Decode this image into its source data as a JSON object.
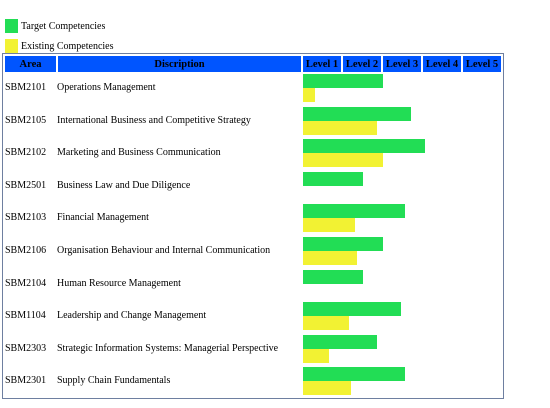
{
  "legend": [
    {
      "label": "Target Competencies",
      "color": "#22dd55"
    },
    {
      "label": "Existing Competencies",
      "color": "#f2f233"
    }
  ],
  "chart_data": {
    "type": "bar",
    "orientation": "horizontal",
    "columns": {
      "area": "Area",
      "description": "Discription",
      "levels": [
        "Level 1",
        "Level 2",
        "Level 3",
        "Level 4",
        "Level 5"
      ]
    },
    "xlim": [
      0,
      5
    ],
    "rows": [
      {
        "code": "SBM2101",
        "description": "Operations Management",
        "target": 2.0,
        "existing": 0.3
      },
      {
        "code": "SBM2105",
        "description": "International Business and Competitive Strategy",
        "target": 2.7,
        "existing": 1.85
      },
      {
        "code": "SBM2102",
        "description": "Marketing and Business Communication",
        "target": 3.05,
        "existing": 2.0
      },
      {
        "code": "SBM2501",
        "description": "Business Law and Due Diligence",
        "target": 1.5,
        "existing": 0
      },
      {
        "code": "SBM2103",
        "description": "Financial Management",
        "target": 2.55,
        "existing": 1.3
      },
      {
        "code": "SBM2106",
        "description": "Organisation Behaviour and Internal Communication",
        "target": 2.0,
        "existing": 1.35
      },
      {
        "code": "SBM2104",
        "description": "Human Resource Management",
        "target": 1.5,
        "existing": 0
      },
      {
        "code": "SBM1104",
        "description": "Leadership and Change Management",
        "target": 2.45,
        "existing": 1.15
      },
      {
        "code": "SBM2303",
        "description": "Strategic Information Systems: Managerial Perspective",
        "target": 1.85,
        "existing": 0.65
      },
      {
        "code": "SBM2301",
        "description": "Supply Chain Fundamentals",
        "target": 2.55,
        "existing": 1.2
      }
    ]
  }
}
